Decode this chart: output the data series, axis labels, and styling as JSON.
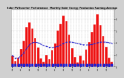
{
  "title": "Solar PV/Inverter Performance  Monthly Solar Energy Production Running Average",
  "background_color": "#d0d0d0",
  "plot_bg_color": "#ffffff",
  "bar_color": "#ee1111",
  "avg_color": "#2222cc",
  "grid_color": "#aaaaaa",
  "bar_edge_color": "#ffffff",
  "bar_values": [
    95,
    45,
    75,
    150,
    220,
    330,
    370,
    320,
    240,
    160,
    70,
    40,
    100,
    65,
    140,
    195,
    300,
    360,
    430,
    380,
    270,
    155,
    80,
    38,
    90,
    55,
    145,
    205,
    290,
    355,
    440,
    350,
    255,
    165,
    78,
    42
  ],
  "ylim": [
    0,
    480
  ],
  "yticks": [
    0,
    100,
    200,
    300,
    400
  ],
  "ytick_labels": [
    "0",
    "1",
    "2",
    "3",
    "4"
  ],
  "n_months": 36,
  "months_per_year": 12,
  "n_years": 3
}
